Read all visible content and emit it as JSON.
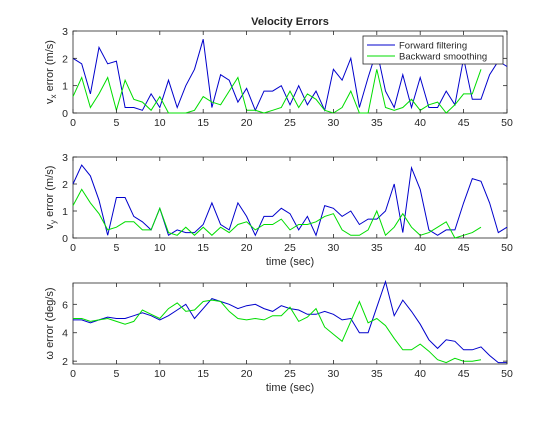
{
  "figure": {
    "title": "Velocity Errors"
  },
  "legend": {
    "placement": "top-right",
    "entries": [
      {
        "name": "Forward filtering",
        "color": "#0000cc"
      },
      {
        "name": "Backward smoothing",
        "color": "#00dd00"
      }
    ]
  },
  "chart_data": [
    {
      "type": "line",
      "title": "Velocity Errors",
      "xlabel": "",
      "ylabel": "v_x error (m/s)",
      "ylabel_parts": {
        "pre": "v",
        "sub": "x",
        "post": " error (m/s)"
      },
      "xlim": [
        0,
        50
      ],
      "ylim": [
        0,
        3
      ],
      "xticks": [
        0,
        5,
        10,
        15,
        20,
        25,
        30,
        35,
        40,
        45,
        50
      ],
      "yticks": [
        0,
        1,
        2,
        3
      ],
      "grid": false,
      "legend": "top-right",
      "series": [
        {
          "name": "Forward filtering",
          "color": "#0000cc",
          "x": [
            0,
            1,
            2,
            3,
            4,
            5,
            6,
            7,
            8,
            9,
            10,
            11,
            12,
            13,
            14,
            15,
            16,
            17,
            18,
            19,
            20,
            21,
            22,
            23,
            24,
            25,
            26,
            27,
            28,
            29,
            30,
            31,
            32,
            33,
            34,
            35,
            36,
            37,
            38,
            39,
            40,
            41,
            42,
            43,
            44,
            45,
            46,
            47,
            48,
            49,
            50
          ],
          "y": [
            2.0,
            1.8,
            0.7,
            2.4,
            1.8,
            1.9,
            0.2,
            0.2,
            0.1,
            0.7,
            0.2,
            1.2,
            0.2,
            1.0,
            1.6,
            2.7,
            0.2,
            1.4,
            1.2,
            0.4,
            0.9,
            0.1,
            0.8,
            0.8,
            1.0,
            0.3,
            1.0,
            0.3,
            0.8,
            0.1,
            1.6,
            1.2,
            2.0,
            0.2,
            1.3,
            2.3,
            0.8,
            0.2,
            1.4,
            0.2,
            1.3,
            0.2,
            0.2,
            0.8,
            0.3,
            2.0,
            0.5,
            0.5,
            1.4,
            1.9,
            1.7
          ]
        },
        {
          "name": "Backward smoothing",
          "color": "#00dd00",
          "x": [
            0,
            1,
            2,
            3,
            4,
            5,
            6,
            7,
            8,
            9,
            10,
            11,
            12,
            13,
            14,
            15,
            16,
            17,
            18,
            19,
            20,
            21,
            22,
            23,
            24,
            25,
            26,
            27,
            28,
            29,
            30,
            31,
            32,
            33,
            34,
            35,
            36,
            37,
            38,
            39,
            40,
            41,
            42,
            43,
            44,
            45,
            46,
            47
          ],
          "y": [
            0.6,
            1.3,
            0.2,
            0.7,
            1.3,
            0.1,
            1.2,
            0.5,
            0.4,
            0.1,
            0.6,
            0.0,
            0.0,
            0.0,
            0.1,
            0.6,
            0.4,
            0.3,
            0.8,
            1.3,
            0.1,
            0.1,
            0.0,
            0.1,
            0.2,
            0.8,
            0.2,
            0.7,
            0.5,
            0.1,
            0.0,
            0.2,
            0.8,
            0.0,
            0.0,
            1.6,
            0.2,
            0.1,
            0.2,
            0.5,
            0.1,
            0.3,
            0.4,
            0.0,
            0.3,
            0.7,
            0.7,
            1.6
          ]
        }
      ]
    },
    {
      "type": "line",
      "title": "",
      "xlabel": "time (sec)",
      "ylabel": "v_y error (m/s)",
      "ylabel_parts": {
        "pre": "v",
        "sub": "y",
        "post": " error (m/s)"
      },
      "xlim": [
        0,
        50
      ],
      "ylim": [
        0,
        3
      ],
      "xticks": [
        0,
        5,
        10,
        15,
        20,
        25,
        30,
        35,
        40,
        45,
        50
      ],
      "yticks": [
        0,
        1,
        2,
        3
      ],
      "grid": false,
      "series": [
        {
          "name": "Forward filtering",
          "color": "#0000cc",
          "x": [
            0,
            1,
            2,
            3,
            4,
            5,
            6,
            7,
            8,
            9,
            10,
            11,
            12,
            13,
            14,
            15,
            16,
            17,
            18,
            19,
            20,
            21,
            22,
            23,
            24,
            25,
            26,
            27,
            28,
            29,
            30,
            31,
            32,
            33,
            34,
            35,
            36,
            37,
            38,
            39,
            40,
            41,
            42,
            43,
            44,
            45,
            46,
            47,
            48,
            49,
            50
          ],
          "y": [
            2.0,
            2.7,
            2.3,
            1.4,
            0.1,
            1.5,
            1.5,
            0.8,
            0.6,
            0.3,
            1.1,
            0.1,
            0.3,
            0.2,
            0.2,
            0.5,
            1.3,
            0.5,
            0.3,
            1.3,
            0.8,
            0.1,
            0.8,
            0.8,
            1.1,
            0.9,
            0.3,
            0.8,
            0.1,
            1.2,
            1.1,
            0.8,
            1.0,
            0.5,
            0.7,
            0.7,
            1.0,
            2.0,
            0.2,
            2.6,
            1.8,
            0.3,
            0.1,
            0.3,
            0.3,
            1.3,
            2.2,
            2.1,
            1.3,
            0.2,
            0.4
          ]
        },
        {
          "name": "Backward smoothing",
          "color": "#00dd00",
          "x": [
            0,
            1,
            2,
            3,
            4,
            5,
            6,
            7,
            8,
            9,
            10,
            11,
            12,
            13,
            14,
            15,
            16,
            17,
            18,
            19,
            20,
            21,
            22,
            23,
            24,
            25,
            26,
            27,
            28,
            29,
            30,
            31,
            32,
            33,
            34,
            35,
            36,
            37,
            38,
            39,
            40,
            41,
            42,
            43,
            44,
            45,
            46,
            47
          ],
          "y": [
            1.2,
            1.8,
            1.3,
            0.9,
            0.3,
            0.4,
            0.6,
            0.6,
            0.3,
            0.3,
            1.1,
            0.2,
            0.1,
            0.4,
            0.1,
            0.4,
            0.1,
            0.4,
            0.2,
            0.5,
            0.6,
            0.3,
            0.5,
            0.5,
            0.7,
            0.3,
            0.5,
            0.5,
            0.6,
            0.8,
            0.9,
            0.3,
            0.1,
            0.1,
            0.3,
            1.0,
            0.1,
            0.4,
            0.9,
            0.4,
            0.1,
            0.2,
            0.4,
            0.6,
            0.0,
            0.1,
            0.2,
            0.4
          ]
        }
      ]
    },
    {
      "type": "line",
      "title": "",
      "xlabel": "time (sec)",
      "ylabel": "ω error (deg/s)",
      "ylabel_parts": {
        "pre": "ω error (deg/s)",
        "sub": "",
        "post": ""
      },
      "xlim": [
        0,
        50
      ],
      "ylim": [
        1.8,
        7.5
      ],
      "xticks": [
        0,
        5,
        10,
        15,
        20,
        25,
        30,
        35,
        40,
        45,
        50
      ],
      "yticks": [
        2,
        4,
        6
      ],
      "grid": false,
      "series": [
        {
          "name": "Forward filtering",
          "color": "#0000cc",
          "x": [
            0,
            1,
            2,
            3,
            4,
            5,
            6,
            7,
            8,
            9,
            10,
            11,
            12,
            13,
            14,
            15,
            16,
            17,
            18,
            19,
            20,
            21,
            22,
            23,
            24,
            25,
            26,
            27,
            28,
            29,
            30,
            31,
            32,
            33,
            34,
            35,
            36,
            37,
            38,
            39,
            40,
            41,
            42,
            43,
            44,
            45,
            46,
            47,
            48,
            49,
            50
          ],
          "y": [
            4.9,
            4.9,
            4.7,
            4.9,
            5.1,
            5.0,
            5.0,
            5.2,
            5.4,
            5.2,
            4.9,
            5.2,
            5.6,
            6.0,
            5.0,
            5.7,
            6.4,
            6.2,
            6.0,
            5.7,
            5.9,
            6.0,
            5.7,
            5.5,
            5.9,
            5.7,
            5.6,
            5.3,
            5.3,
            5.5,
            5.3,
            4.9,
            5.0,
            4.0,
            4.0,
            5.8,
            7.6,
            5.2,
            6.3,
            5.5,
            4.6,
            3.5,
            2.9,
            3.5,
            3.4,
            2.8,
            2.8,
            3.0,
            2.4,
            1.9,
            1.9
          ]
        },
        {
          "name": "Backward smoothing",
          "color": "#00dd00",
          "x": [
            0,
            1,
            2,
            3,
            4,
            5,
            6,
            7,
            8,
            9,
            10,
            11,
            12,
            13,
            14,
            15,
            16,
            17,
            18,
            19,
            20,
            21,
            22,
            23,
            24,
            25,
            26,
            27,
            28,
            29,
            30,
            31,
            32,
            33,
            34,
            35,
            36,
            37,
            38,
            39,
            40,
            41,
            42,
            43,
            44,
            45,
            46,
            47
          ],
          "y": [
            5.0,
            5.0,
            4.8,
            4.9,
            5.0,
            4.8,
            4.6,
            4.8,
            5.6,
            5.3,
            5.0,
            5.7,
            6.1,
            5.5,
            5.6,
            6.2,
            6.3,
            6.2,
            5.5,
            5.0,
            4.9,
            5.0,
            4.9,
            5.2,
            5.2,
            5.8,
            4.8,
            5.1,
            5.7,
            4.4,
            3.9,
            3.4,
            4.8,
            6.2,
            4.7,
            5.0,
            4.5,
            3.6,
            2.8,
            2.8,
            3.2,
            2.7,
            2.1,
            1.9,
            2.2,
            2.0,
            2.0,
            2.1
          ]
        }
      ]
    }
  ]
}
